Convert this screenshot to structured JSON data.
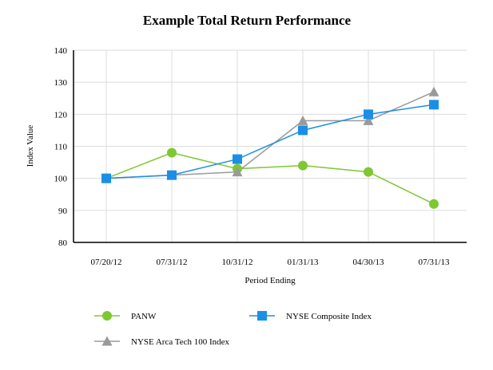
{
  "chart_data": {
    "type": "line",
    "title": "Example Total Return Performance",
    "xlabel": "Period Ending",
    "ylabel": "Index Value",
    "ylim": [
      80,
      140
    ],
    "yticks": [
      80,
      90,
      100,
      110,
      120,
      130,
      140
    ],
    "grid": true,
    "legend_position": "bottom",
    "categories": [
      "07/20/12",
      "07/31/12",
      "10/31/12",
      "01/31/13",
      "04/30/13",
      "07/31/13"
    ],
    "series": [
      {
        "name": "PANW",
        "color": "#7ec832",
        "marker": "circle",
        "values": [
          100,
          108,
          103,
          104,
          102,
          92
        ]
      },
      {
        "name": "NYSE Composite Index",
        "color": "#1b8fe6",
        "marker": "square",
        "values": [
          100,
          101,
          106,
          115,
          120,
          123
        ]
      },
      {
        "name": "NYSE Arca Tech 100 Index",
        "color": "#9a9a9a",
        "marker": "triangle",
        "values": [
          100,
          101,
          102,
          118,
          118,
          127
        ]
      }
    ]
  }
}
